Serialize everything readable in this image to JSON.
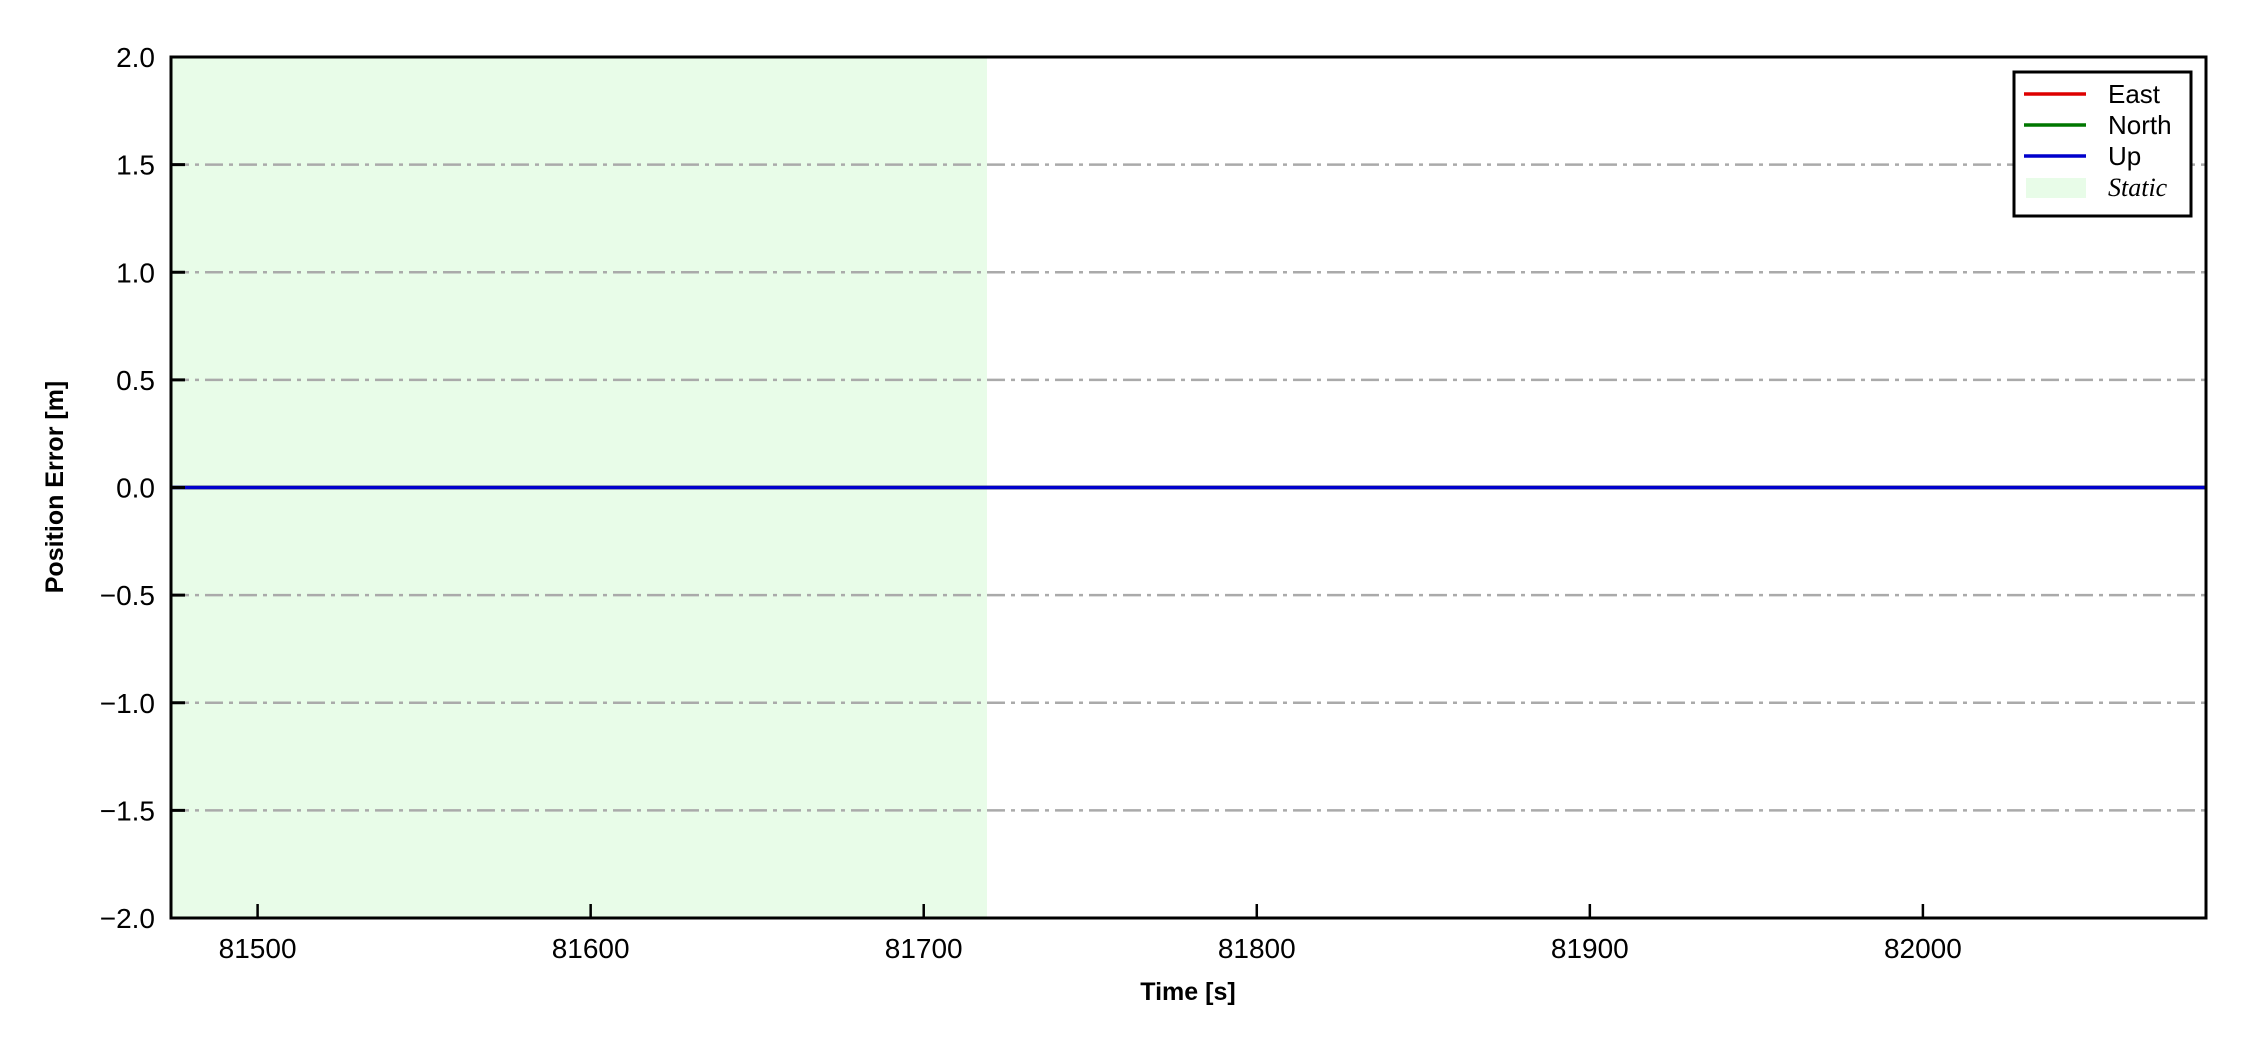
{
  "chart_data": {
    "type": "line",
    "title": "",
    "xlabel": "Time [s]",
    "ylabel": "Position Error [m]",
    "xlim": [
      81474,
      82085
    ],
    "ylim": [
      -2.0,
      2.0
    ],
    "xticks": [
      81500,
      81600,
      81700,
      81800,
      81900,
      82000
    ],
    "xtick_labels": [
      "81500",
      "81600",
      "81700",
      "81800",
      "81900",
      "82000"
    ],
    "yticks": [
      2.0,
      1.5,
      1.0,
      0.5,
      0.0,
      -0.5,
      -1.0,
      -1.5,
      -2.0
    ],
    "ytick_labels": [
      "2.0",
      "1.5",
      "1.0",
      "0.5",
      "0.0",
      "−0.5",
      "−1.0",
      "−1.5",
      "−2.0"
    ],
    "grid": {
      "axis": "y",
      "style": "dash-dot",
      "color": "#aaaaaa"
    },
    "legend_position": "top-right",
    "series": [
      {
        "name": "East",
        "color": "#dd0000",
        "x": [
          81474,
          82085
        ],
        "y": [
          0.0,
          0.0
        ]
      },
      {
        "name": "North",
        "color": "#007700",
        "x": [
          81474,
          82085
        ],
        "y": [
          0.0,
          0.0
        ]
      },
      {
        "name": "Up",
        "color": "#0000cc",
        "x": [
          81474,
          82085
        ],
        "y": [
          0.0,
          0.0
        ]
      }
    ],
    "shaded_regions": [
      {
        "name": "Static",
        "color": "#e8fce8",
        "x_start": 81474,
        "x_end": 81719
      }
    ]
  }
}
